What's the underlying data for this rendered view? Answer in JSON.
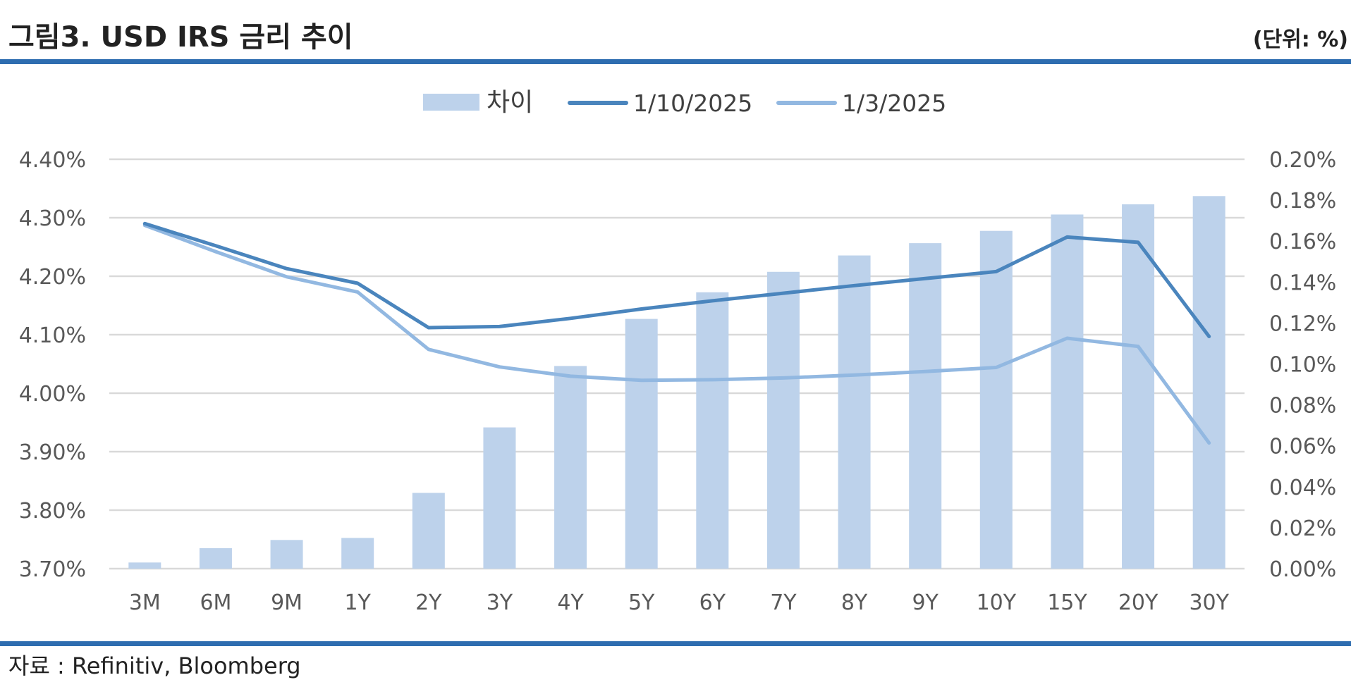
{
  "header": {
    "title": "그림3. USD IRS 금리 추이",
    "unit": "(단위: %)"
  },
  "footer": {
    "source": "자료 : Refinitiv, Bloomberg"
  },
  "colors": {
    "rule": "#2E6DB0",
    "bar": "#BDD2EB",
    "line_recent": "#4A85BD",
    "line_prior": "#92B8E1",
    "grid": "#D9D9D9"
  },
  "chart_data": {
    "type": "bar+line",
    "title": "USD IRS 금리 추이",
    "categories": [
      "3M",
      "6M",
      "9M",
      "1Y",
      "2Y",
      "3Y",
      "4Y",
      "5Y",
      "6Y",
      "7Y",
      "8Y",
      "9Y",
      "10Y",
      "15Y",
      "20Y",
      "30Y"
    ],
    "series": [
      {
        "name": "차이",
        "type": "bar",
        "axis": "right",
        "values": [
          0.003,
          0.01,
          0.014,
          0.015,
          0.037,
          0.069,
          0.099,
          0.122,
          0.135,
          0.145,
          0.153,
          0.159,
          0.165,
          0.173,
          0.178,
          0.182
        ]
      },
      {
        "name": "1/10/2025",
        "type": "line",
        "axis": "left",
        "values": [
          4.29,
          4.252,
          4.213,
          4.188,
          4.112,
          4.114,
          4.128,
          4.144,
          4.158,
          4.171,
          4.184,
          4.196,
          4.208,
          4.267,
          4.258,
          4.097
        ]
      },
      {
        "name": "1/3/2025",
        "type": "line",
        "axis": "left",
        "values": [
          4.287,
          4.242,
          4.199,
          4.173,
          4.075,
          4.045,
          4.029,
          4.022,
          4.023,
          4.026,
          4.031,
          4.037,
          4.044,
          4.094,
          4.08,
          3.915
        ]
      }
    ],
    "y_left": {
      "min": 3.7,
      "max": 4.4,
      "ticks": [
        "4.40%",
        "4.30%",
        "4.20%",
        "4.10%",
        "4.00%",
        "3.90%",
        "3.80%",
        "3.70%"
      ]
    },
    "y_right": {
      "min": 0.0,
      "max": 0.2,
      "ticks": [
        "0.20%",
        "0.18%",
        "0.16%",
        "0.14%",
        "0.12%",
        "0.10%",
        "0.08%",
        "0.06%",
        "0.04%",
        "0.02%",
        "0.00%"
      ]
    },
    "grid": true,
    "legend_position": "top-center"
  }
}
